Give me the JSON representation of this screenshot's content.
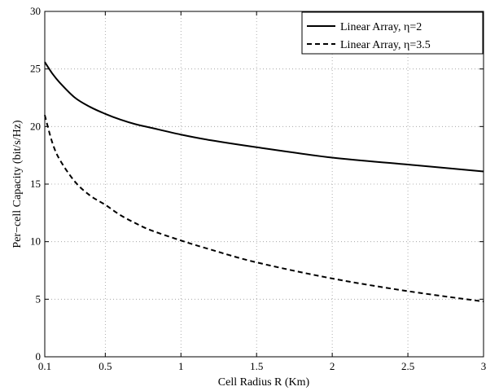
{
  "chart_data": {
    "type": "line",
    "title": "",
    "xlabel": "Cell Radius R (Km)",
    "ylabel": "Per−cell Capacity (bit/s/Hz)",
    "xlim": [
      0.1,
      3
    ],
    "ylim": [
      0,
      30
    ],
    "x_ticks": [
      "0.1",
      "0.5",
      "1",
      "1.5",
      "2",
      "2.5",
      "3"
    ],
    "x_tick_values": [
      0.1,
      0.5,
      1,
      1.5,
      2,
      2.5,
      3
    ],
    "y_ticks": [
      "0",
      "5",
      "10",
      "15",
      "20",
      "25",
      "30"
    ],
    "y_tick_values": [
      0,
      5,
      10,
      15,
      20,
      25,
      30
    ],
    "grid": true,
    "legend_position": "top-right",
    "series": [
      {
        "name": "Linear Array, η=2",
        "line_style": "solid",
        "color": "#000000",
        "x": [
          0.1,
          0.15,
          0.2,
          0.3,
          0.4,
          0.5,
          0.6,
          0.7,
          0.8,
          1.0,
          1.2,
          1.5,
          2.0,
          2.5,
          3.0
        ],
        "y": [
          25.6,
          24.6,
          23.8,
          22.5,
          21.7,
          21.1,
          20.6,
          20.2,
          19.9,
          19.3,
          18.8,
          18.2,
          17.3,
          16.7,
          16.1
        ]
      },
      {
        "name": "Linear Array, η=3.5",
        "line_style": "dashed",
        "color": "#000000",
        "x": [
          0.1,
          0.15,
          0.2,
          0.3,
          0.4,
          0.5,
          0.6,
          0.7,
          0.8,
          1.0,
          1.2,
          1.5,
          2.0,
          2.5,
          3.0
        ],
        "y": [
          21.0,
          18.6,
          17.1,
          15.2,
          14.0,
          13.2,
          12.3,
          11.6,
          11.0,
          10.1,
          9.3,
          8.2,
          6.8,
          5.7,
          4.8
        ]
      }
    ]
  }
}
